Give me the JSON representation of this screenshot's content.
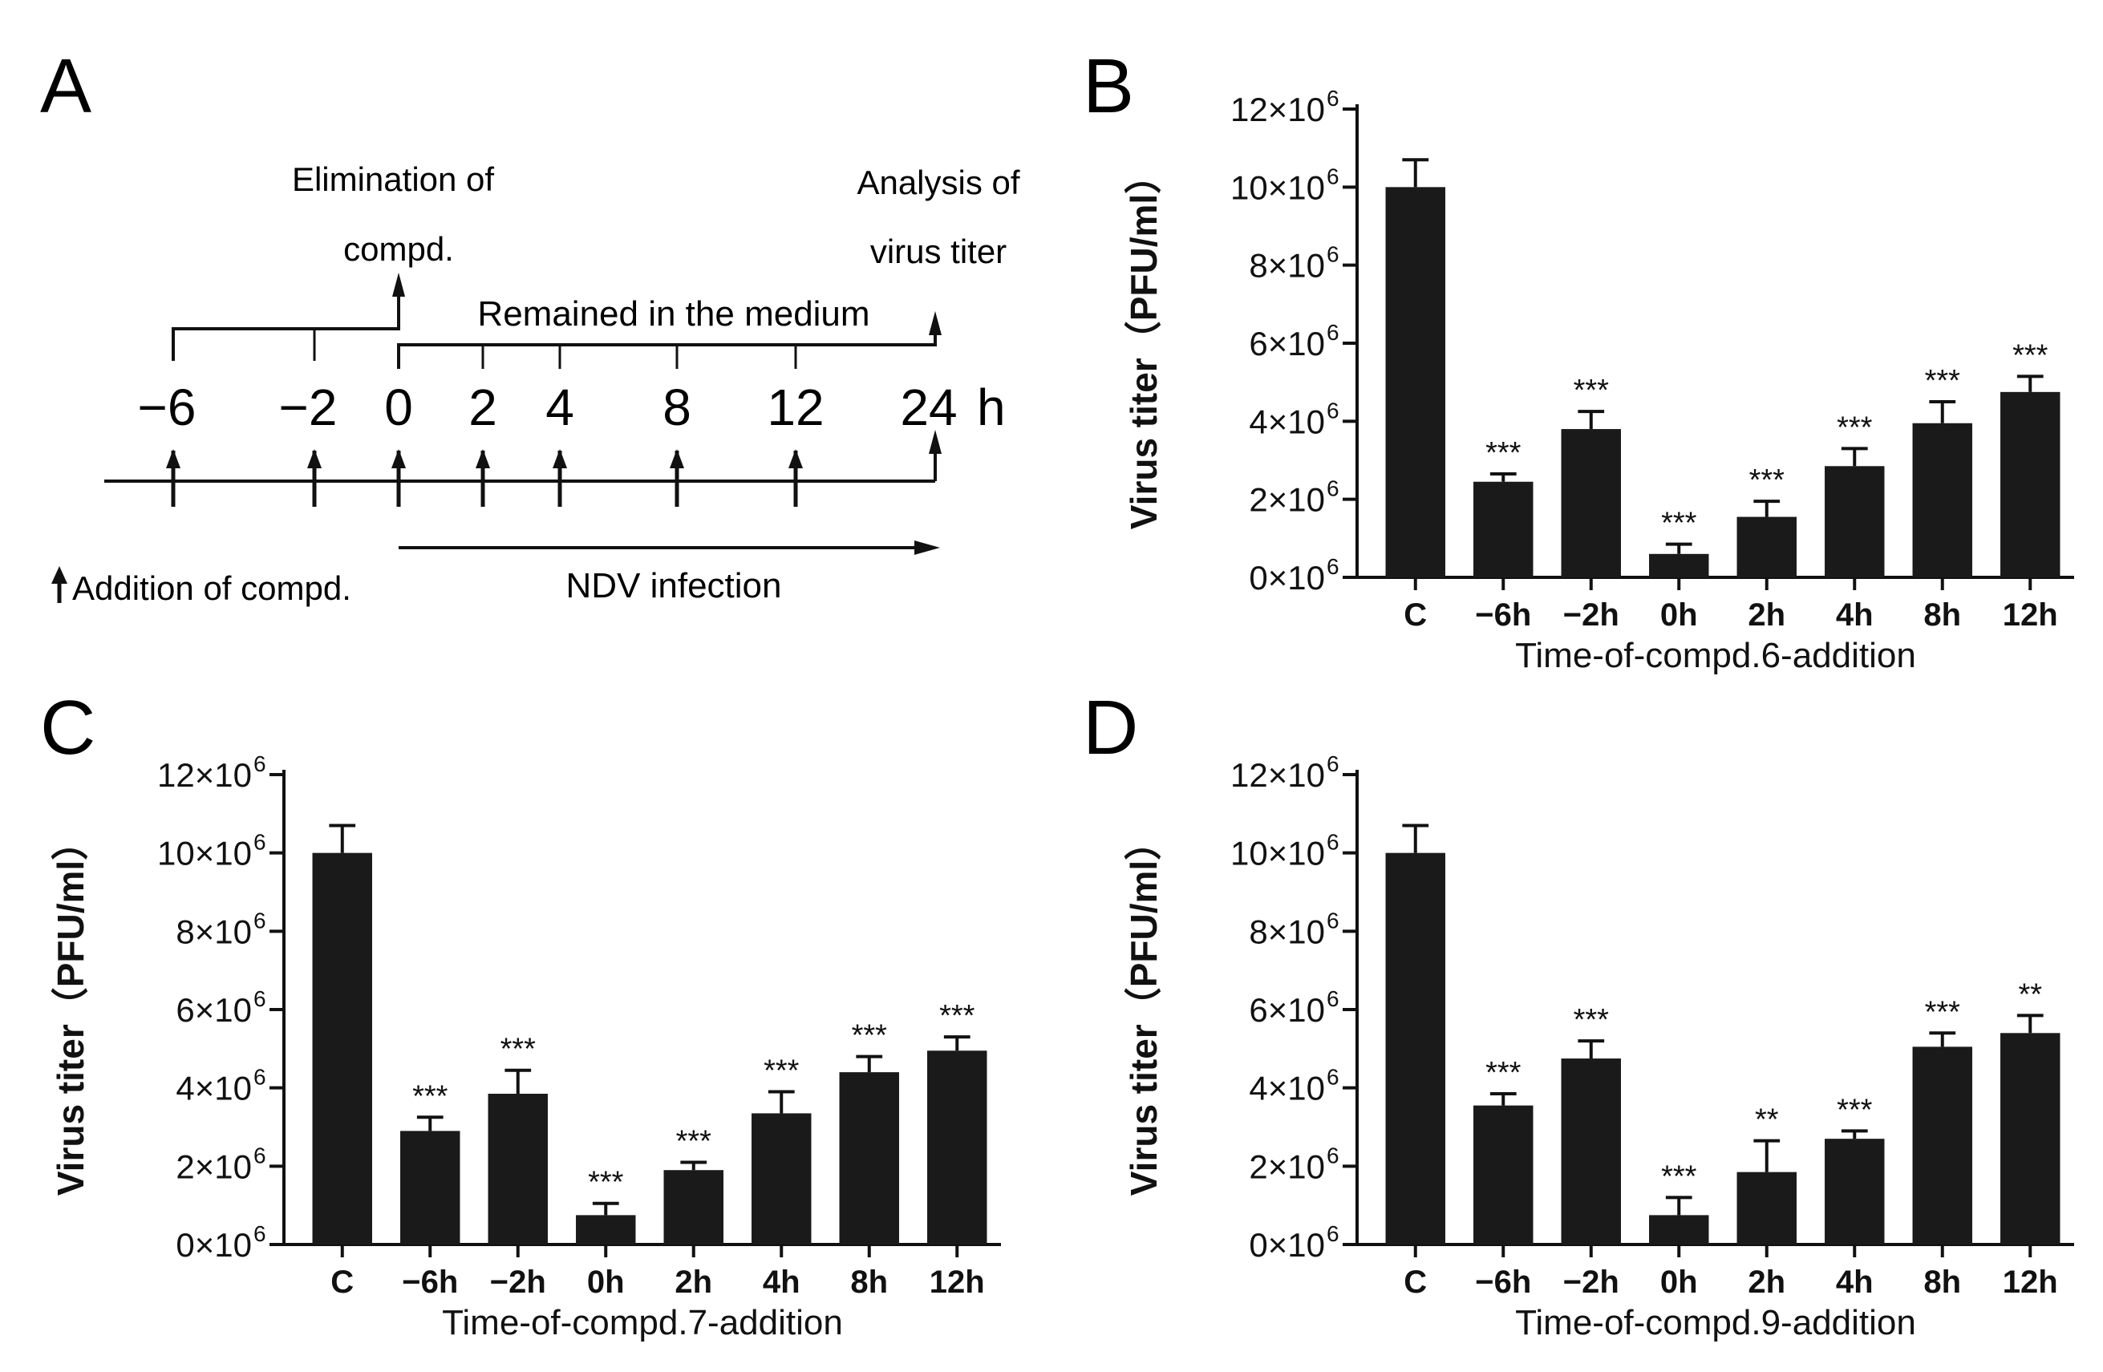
{
  "panels": {
    "A": {
      "letter": "A",
      "ticks": [
        "−6",
        "−2",
        "0",
        "2",
        "4",
        "8",
        "12",
        "24"
      ],
      "hour_unit": "h",
      "elimination_label_1": "Elimination of",
      "elimination_label_2": "compd.",
      "analysis_label_1": "Analysis of",
      "analysis_label_2": "virus titer",
      "remained_label": "Remained in the medium",
      "addition_label": "Addition of compd.",
      "infection_label": "NDV infection"
    },
    "B": {
      "letter": "B"
    },
    "C": {
      "letter": "C"
    },
    "D": {
      "letter": "D"
    }
  },
  "chart_data": [
    {
      "panel": "B",
      "type": "bar",
      "title": "",
      "xlabel": "Time-of-compd.6-addition",
      "ylabel": "Virus titer（PFU/ml）",
      "categories": [
        "C",
        "−6h",
        "−2h",
        "0h",
        "2h",
        "4h",
        "8h",
        "12h"
      ],
      "values": [
        10.0,
        2.45,
        3.8,
        0.6,
        1.55,
        2.85,
        3.95,
        4.75
      ],
      "errors": [
        0.7,
        0.2,
        0.45,
        0.25,
        0.4,
        0.45,
        0.55,
        0.4
      ],
      "significance": [
        "",
        "***",
        "***",
        "***",
        "***",
        "***",
        "***",
        "***"
      ],
      "ylim": [
        0,
        12
      ],
      "yticks": [
        0,
        2,
        4,
        6,
        8,
        10,
        12
      ],
      "ytick_labels": [
        "0×10",
        "2×10",
        "4×10",
        "6×10",
        "8×10",
        "10×10",
        "12×10"
      ],
      "ytick_exponent": "6",
      "bar_color": "#1a1a1a"
    },
    {
      "panel": "C",
      "type": "bar",
      "title": "",
      "xlabel": "Time-of-compd.7-addition",
      "ylabel": "Virus titer（PFU/ml）",
      "categories": [
        "C",
        "−6h",
        "−2h",
        "0h",
        "2h",
        "4h",
        "8h",
        "12h"
      ],
      "values": [
        10.0,
        2.9,
        3.85,
        0.75,
        1.9,
        3.35,
        4.4,
        4.95
      ],
      "errors": [
        0.7,
        0.35,
        0.6,
        0.3,
        0.2,
        0.55,
        0.4,
        0.35
      ],
      "significance": [
        "",
        "***",
        "***",
        "***",
        "***",
        "***",
        "***",
        "***"
      ],
      "ylim": [
        0,
        12
      ],
      "yticks": [
        0,
        2,
        4,
        6,
        8,
        10,
        12
      ],
      "ytick_labels": [
        "0×10",
        "2×10",
        "4×10",
        "6×10",
        "8×10",
        "10×10",
        "12×10"
      ],
      "ytick_exponent": "6",
      "bar_color": "#1a1a1a"
    },
    {
      "panel": "D",
      "type": "bar",
      "title": "",
      "xlabel": "Time-of-compd.9-addition",
      "ylabel": "Virus titer（PFU/ml）",
      "categories": [
        "C",
        "−6h",
        "−2h",
        "0h",
        "2h",
        "4h",
        "8h",
        "12h"
      ],
      "values": [
        10.0,
        3.55,
        4.75,
        0.75,
        1.85,
        2.7,
        5.05,
        5.4
      ],
      "errors": [
        0.7,
        0.3,
        0.45,
        0.45,
        0.8,
        0.2,
        0.35,
        0.45
      ],
      "significance": [
        "",
        "***",
        "***",
        "***",
        "**",
        "***",
        "***",
        "**"
      ],
      "ylim": [
        0,
        12
      ],
      "yticks": [
        0,
        2,
        4,
        6,
        8,
        10,
        12
      ],
      "ytick_labels": [
        "0×10",
        "2×10",
        "4×10",
        "6×10",
        "8×10",
        "10×10",
        "12×10"
      ],
      "ytick_exponent": "6",
      "bar_color": "#1a1a1a"
    }
  ]
}
